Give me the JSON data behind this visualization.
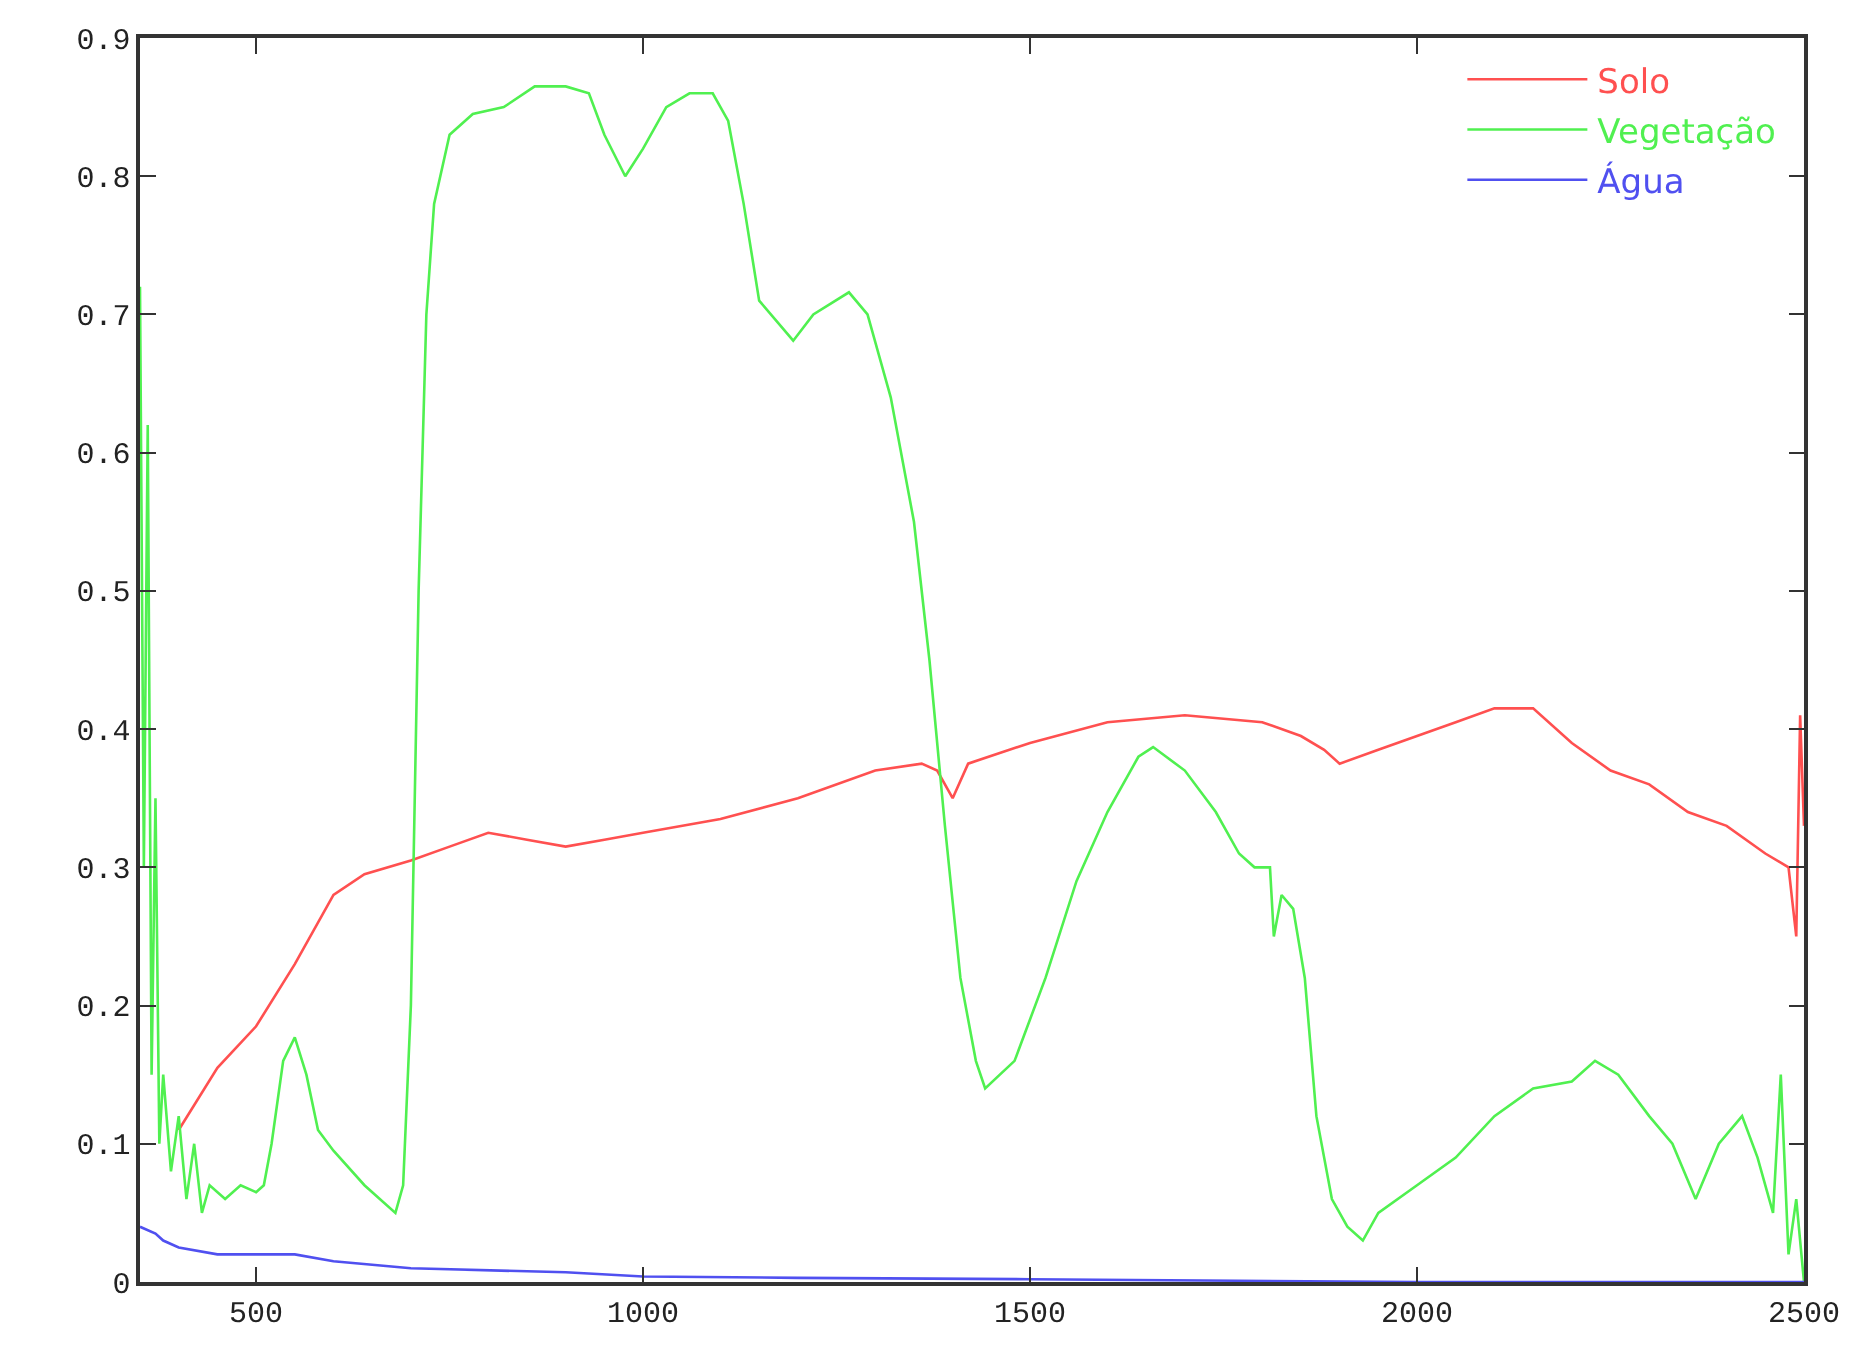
{
  "chart_data": {
    "type": "line",
    "xlim": [
      350,
      2500
    ],
    "ylim": [
      0,
      0.9
    ],
    "xticks": [
      500,
      1000,
      1500,
      2000,
      2500
    ],
    "yticks": [
      0,
      0.1,
      0.2,
      0.3,
      0.4,
      0.5,
      0.6,
      0.7,
      0.8,
      0.9
    ],
    "legend": "top right",
    "marker": "none",
    "line_style": "solid",
    "series": [
      {
        "name": "Solo",
        "color": "#ff5050",
        "x": [
          400,
          450,
          500,
          550,
          600,
          640,
          700,
          750,
          800,
          850,
          900,
          950,
          1000,
          1100,
          1200,
          1300,
          1360,
          1380,
          1400,
          1420,
          1500,
          1600,
          1700,
          1800,
          1850,
          1880,
          1900,
          1950,
          2000,
          2050,
          2100,
          2150,
          2200,
          2250,
          2300,
          2350,
          2400,
          2450,
          2480,
          2490,
          2495,
          2500
        ],
        "values": [
          0.11,
          0.155,
          0.185,
          0.23,
          0.28,
          0.295,
          0.305,
          0.315,
          0.325,
          0.32,
          0.315,
          0.32,
          0.325,
          0.335,
          0.35,
          0.37,
          0.375,
          0.37,
          0.35,
          0.375,
          0.39,
          0.405,
          0.41,
          0.405,
          0.395,
          0.385,
          0.375,
          0.385,
          0.395,
          0.405,
          0.415,
          0.415,
          0.39,
          0.37,
          0.36,
          0.34,
          0.33,
          0.31,
          0.3,
          0.25,
          0.41,
          0.33
        ]
      },
      {
        "name": "Vegetação",
        "color": "#50f050",
        "x": [
          350,
          355,
          360,
          365,
          370,
          375,
          380,
          390,
          400,
          410,
          420,
          430,
          440,
          460,
          480,
          500,
          510,
          520,
          535,
          550,
          565,
          580,
          600,
          640,
          680,
          690,
          700,
          710,
          720,
          730,
          750,
          780,
          820,
          860,
          900,
          930,
          950,
          977,
          1000,
          1030,
          1060,
          1090,
          1110,
          1130,
          1150,
          1194,
          1220,
          1266,
          1290,
          1320,
          1350,
          1370,
          1390,
          1410,
          1430,
          1442,
          1480,
          1520,
          1560,
          1600,
          1640,
          1659,
          1700,
          1740,
          1770,
          1790,
          1810,
          1815,
          1825,
          1840,
          1855,
          1870,
          1890,
          1910,
          1930,
          1950,
          2000,
          2050,
          2100,
          2150,
          2200,
          2230,
          2260,
          2300,
          2330,
          2360,
          2390,
          2420,
          2440,
          2460,
          2470,
          2480,
          2490,
          2500
        ],
        "values": [
          0.72,
          0.3,
          0.62,
          0.15,
          0.35,
          0.1,
          0.15,
          0.08,
          0.12,
          0.06,
          0.1,
          0.05,
          0.07,
          0.06,
          0.07,
          0.065,
          0.07,
          0.1,
          0.16,
          0.177,
          0.15,
          0.11,
          0.095,
          0.07,
          0.05,
          0.07,
          0.2,
          0.5,
          0.7,
          0.78,
          0.83,
          0.845,
          0.85,
          0.865,
          0.865,
          0.86,
          0.83,
          0.8,
          0.82,
          0.85,
          0.86,
          0.86,
          0.84,
          0.78,
          0.71,
          0.681,
          0.7,
          0.716,
          0.7,
          0.64,
          0.55,
          0.45,
          0.33,
          0.22,
          0.16,
          0.14,
          0.16,
          0.22,
          0.29,
          0.34,
          0.38,
          0.387,
          0.37,
          0.34,
          0.31,
          0.3,
          0.3,
          0.25,
          0.28,
          0.27,
          0.22,
          0.12,
          0.06,
          0.04,
          0.03,
          0.05,
          0.07,
          0.09,
          0.12,
          0.14,
          0.145,
          0.16,
          0.15,
          0.12,
          0.1,
          0.06,
          0.1,
          0.12,
          0.09,
          0.05,
          0.15,
          0.02,
          0.06,
          0.0
        ]
      },
      {
        "name": "Água",
        "color": "#5050f0",
        "x": [
          350,
          370,
          380,
          400,
          450,
          550,
          600,
          700,
          900,
          1000,
          1200,
          1500,
          2000,
          2500
        ],
        "values": [
          0.04,
          0.035,
          0.03,
          0.025,
          0.02,
          0.02,
          0.015,
          0.01,
          0.007,
          0.004,
          0.003,
          0.002,
          0.0,
          0.0
        ]
      }
    ]
  }
}
